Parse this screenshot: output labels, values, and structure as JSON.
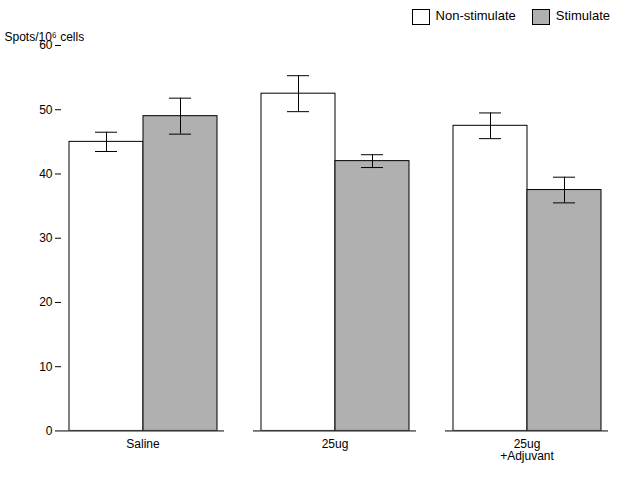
{
  "chart_data": {
    "type": "bar",
    "categories": [
      "Saline",
      "25ug",
      "25ug\n+Adjuvant"
    ],
    "series": [
      {
        "name": "Non-stimulate",
        "color": "#FFFFFF",
        "values": [
          45.0,
          52.5,
          47.5
        ],
        "errors": [
          1.5,
          2.8,
          2.0
        ]
      },
      {
        "name": "Stimulate",
        "color": "#B0B0B0",
        "values": [
          49.0,
          42.0,
          37.5
        ],
        "errors": [
          2.8,
          1.0,
          2.0
        ]
      }
    ],
    "ylabel": "Spots/10⁶ cells",
    "ylim": [
      0,
      60
    ],
    "yticks": [
      0,
      10,
      20,
      30,
      40,
      50,
      60
    ],
    "legend": "upper right",
    "grid": false
  }
}
